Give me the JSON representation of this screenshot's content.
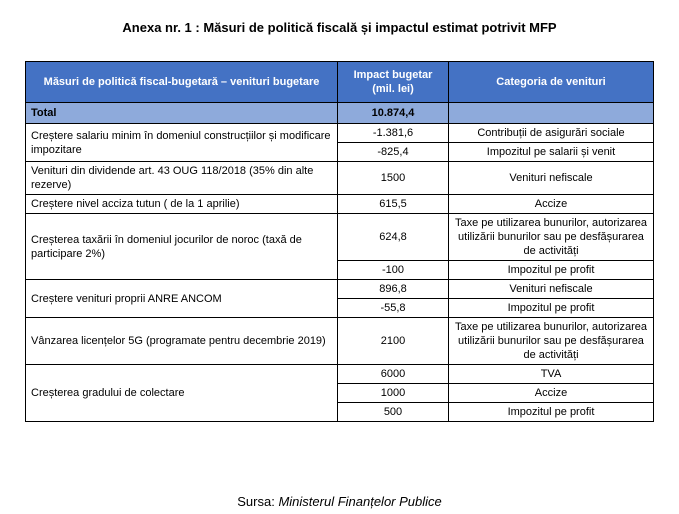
{
  "title": "Anexa nr. 1 : Măsuri de politică fiscală și impactul estimat potrivit MFP",
  "headers": {
    "measure": "Măsuri de politică fiscal-bugetară – venituri bugetare",
    "impact": "Impact bugetar (mil. lei)",
    "category": "Categoria de venituri"
  },
  "total": {
    "label": "Total",
    "value": "10.874,4"
  },
  "rows": [
    {
      "measure": "Creștere salariu minim în domeniul construcțiilor și modificare impozitare",
      "impact": "-1.381,6",
      "category": "Contribuții de asigurări sociale"
    },
    {
      "impact": "-825,4",
      "category": "Impozitul pe salarii și venit"
    },
    {
      "measure": "Venituri din dividende art. 43 OUG 118/2018 (35% din alte rezerve)",
      "impact": "1500",
      "category": "Venituri nefiscale"
    },
    {
      "measure": "Creștere nivel acciza tutun ( de la 1 aprilie)",
      "impact": "615,5",
      "category": "Accize"
    },
    {
      "measure": "Creșterea taxării în domeniul jocurilor de noroc (taxă de participare 2%)",
      "impact": "624,8",
      "category": "Taxe pe utilizarea bunurilor, autorizarea utilizării bunurilor sau pe desfășurarea de activități"
    },
    {
      "impact": "-100",
      "category": "Impozitul pe profit"
    },
    {
      "measure": "Creștere venituri proprii ANRE ANCOM",
      "impact": "896,8",
      "category": "Venituri nefiscale"
    },
    {
      "impact": "-55,8",
      "category": "Impozitul pe profit"
    },
    {
      "measure": "Vânzarea licențelor 5G (programate pentru decembrie 2019)",
      "impact": "2100",
      "category": "Taxe pe utilizarea bunurilor, autorizarea utilizării bunurilor sau pe desfășurarea de activități"
    },
    {
      "measure": "Creșterea gradului de colectare",
      "impact": "6000",
      "category": "TVA"
    },
    {
      "impact": "1000",
      "category": "Accize"
    },
    {
      "impact": "500",
      "category": "Impozitul pe profit"
    }
  ],
  "source": {
    "prefix": "Sursa:",
    "name": "Ministerul Finanțelor Publice"
  }
}
